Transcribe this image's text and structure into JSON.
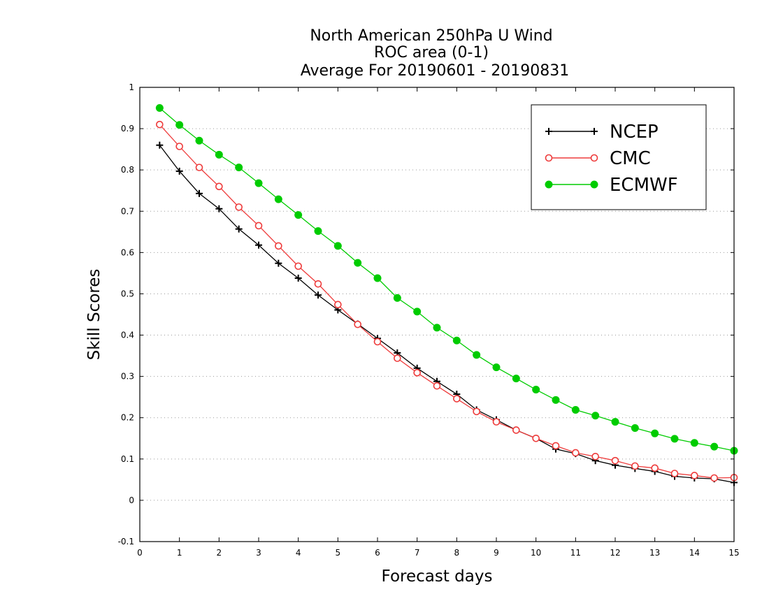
{
  "chart_data": {
    "type": "line",
    "title": [
      "North American 250hPa U Wind",
      "ROC area (0-1)",
      "Average For 20190601 - 20190831"
    ],
    "xlabel": "Forecast days",
    "ylabel": "Skill Scores",
    "xlim": [
      0,
      15
    ],
    "ylim": [
      -0.1,
      1
    ],
    "xticks": [
      "0",
      "1",
      "2",
      "3",
      "4",
      "5",
      "6",
      "7",
      "8",
      "9",
      "10",
      "11",
      "12",
      "13",
      "14",
      "15"
    ],
    "yticks": [
      "-0.1",
      "0",
      "0.1",
      "0.2",
      "0.3",
      "0.4",
      "0.5",
      "0.6",
      "0.7",
      "0.8",
      "0.9",
      "1"
    ],
    "grid": true,
    "legend_position": "top-right",
    "x": [
      0.5,
      1,
      1.5,
      2,
      2.5,
      3,
      3.5,
      4,
      4.5,
      5,
      5.5,
      6,
      6.5,
      7,
      7.5,
      8,
      8.5,
      9,
      9.5,
      10,
      10.5,
      11,
      11.5,
      12,
      12.5,
      13,
      13.5,
      14,
      14.5,
      15
    ],
    "series": [
      {
        "name": "NCEP",
        "color": "#000000",
        "marker": "plus",
        "values": [
          0.86,
          0.797,
          0.743,
          0.706,
          0.657,
          0.618,
          0.574,
          0.538,
          0.497,
          0.461,
          0.427,
          0.392,
          0.357,
          0.32,
          0.288,
          0.257,
          0.219,
          0.195,
          0.17,
          0.15,
          0.124,
          0.113,
          0.096,
          0.085,
          0.077,
          0.07,
          0.058,
          0.054,
          0.052,
          0.043
        ]
      },
      {
        "name": "CMC",
        "color": "#ee3b3b",
        "marker": "open-circle",
        "values": [
          0.91,
          0.857,
          0.806,
          0.76,
          0.71,
          0.665,
          0.616,
          0.567,
          0.524,
          0.474,
          0.426,
          0.384,
          0.344,
          0.309,
          0.277,
          0.246,
          0.215,
          0.19,
          0.17,
          0.15,
          0.132,
          0.115,
          0.106,
          0.096,
          0.083,
          0.078,
          0.065,
          0.06,
          0.054,
          0.055
        ]
      },
      {
        "name": "ECMWF",
        "color": "#00cc00",
        "marker": "filled-circle",
        "values": [
          0.95,
          0.909,
          0.871,
          0.837,
          0.806,
          0.768,
          0.729,
          0.691,
          0.652,
          0.616,
          0.575,
          0.538,
          0.49,
          0.457,
          0.418,
          0.387,
          0.352,
          0.322,
          0.295,
          0.268,
          0.243,
          0.219,
          0.205,
          0.19,
          0.175,
          0.162,
          0.149,
          0.139,
          0.13,
          0.12
        ]
      }
    ]
  }
}
